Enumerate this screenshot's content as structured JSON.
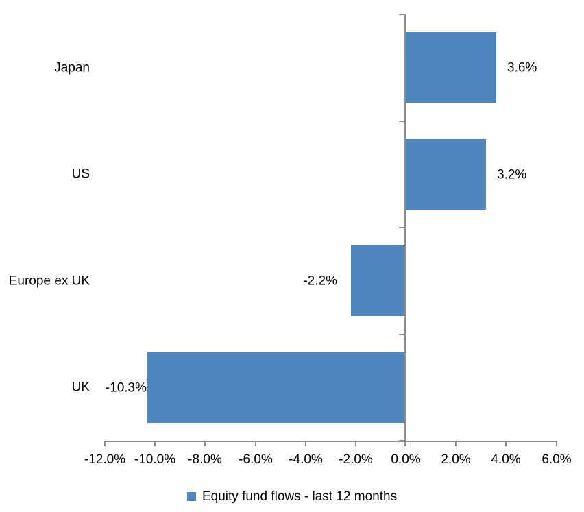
{
  "chart_data": {
    "type": "bar",
    "orientation": "horizontal",
    "categories": [
      "Japan",
      "US",
      "Europe ex UK",
      "UK"
    ],
    "series": [
      {
        "name": "Equity fund flows - last 12 months",
        "values": [
          3.6,
          3.2,
          -2.2,
          -10.3
        ],
        "labels": [
          "3.6%",
          "3.2%",
          "-2.2%",
          "-10.3%"
        ]
      }
    ],
    "xlim": [
      -12,
      6
    ],
    "x_tick_values": [
      -12,
      -10,
      -8,
      -6,
      -4,
      -2,
      0,
      2,
      4,
      6
    ],
    "x_tick_labels": [
      "-12.0%",
      "-10.0%",
      "-8.0%",
      "-6.0%",
      "-4.0%",
      "-2.0%",
      "0.0%",
      "2.0%",
      "4.0%",
      "6.0%"
    ],
    "grid": false,
    "legend_position": "bottom",
    "legend": [
      {
        "label": "Equity fund flows - last 12 months",
        "color": "#4E87BE"
      }
    ],
    "colors": {
      "bar": "#4E87BE",
      "axis": "#8C8C8C",
      "text": "#000000",
      "background": "#FFFFFF"
    }
  }
}
